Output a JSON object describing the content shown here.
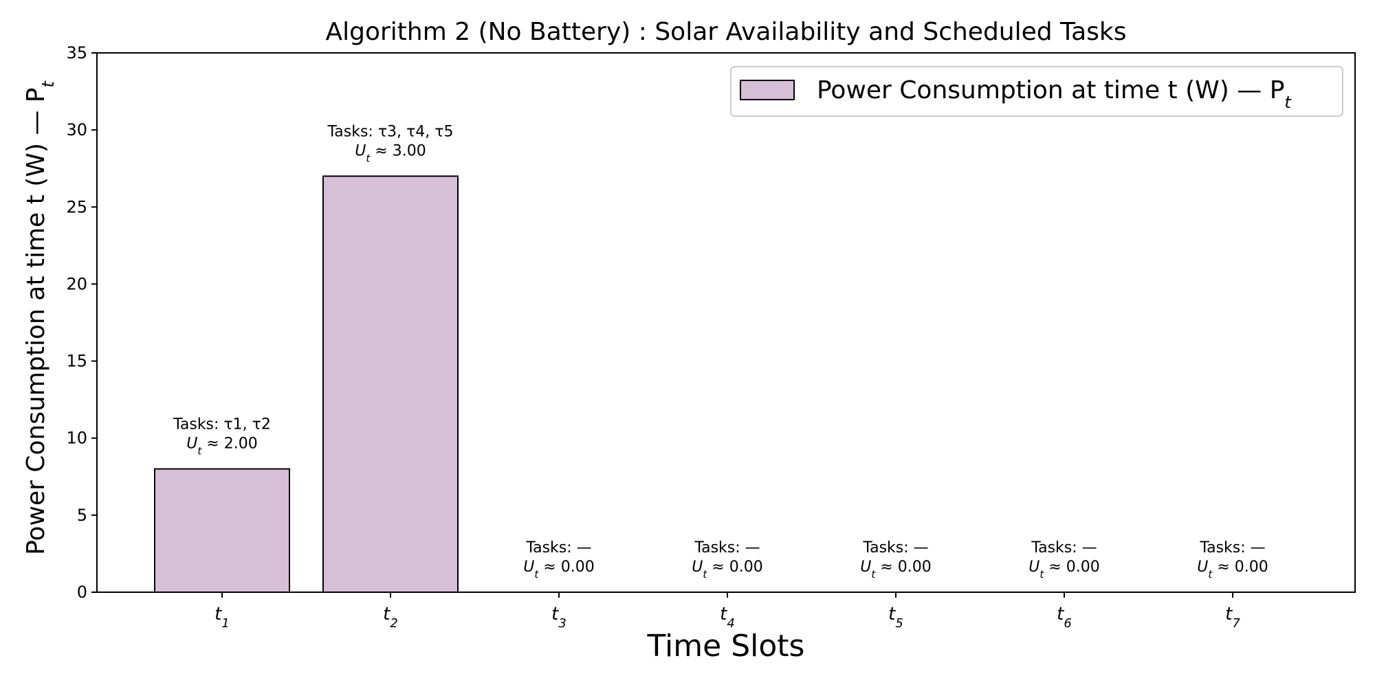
{
  "chart_data": {
    "type": "bar",
    "title": "Algorithm 2 (No Battery) : Solar Availability and Scheduled Tasks",
    "xlabel": "Time Slots",
    "ylabel": "Power Consumption at time t (W) — P",
    "ylabel_sub": "t",
    "categories": [
      {
        "base": "t",
        "sub": "1"
      },
      {
        "base": "t",
        "sub": "2"
      },
      {
        "base": "t",
        "sub": "3"
      },
      {
        "base": "t",
        "sub": "4"
      },
      {
        "base": "t",
        "sub": "5"
      },
      {
        "base": "t",
        "sub": "6"
      },
      {
        "base": "t",
        "sub": "7"
      }
    ],
    "series": [
      {
        "name": "Power Consumption at time t (W) — P",
        "name_sub": "t",
        "values": [
          8,
          27,
          0,
          0,
          0,
          0,
          0
        ],
        "color": "#d8bfd8"
      }
    ],
    "annotations": [
      {
        "tasks": "Tasks: τ1, τ2",
        "u_base": "U",
        "u_sub": "t",
        "u_value": " ≈ 2.00"
      },
      {
        "tasks": "Tasks: τ3, τ4, τ5",
        "u_base": "U",
        "u_sub": "t",
        "u_value": " ≈ 3.00"
      },
      {
        "tasks": "Tasks: —",
        "u_base": "U",
        "u_sub": "t",
        "u_value": " ≈ 0.00"
      },
      {
        "tasks": "Tasks: —",
        "u_base": "U",
        "u_sub": "t",
        "u_value": " ≈ 0.00"
      },
      {
        "tasks": "Tasks: —",
        "u_base": "U",
        "u_sub": "t",
        "u_value": " ≈ 0.00"
      },
      {
        "tasks": "Tasks: —",
        "u_base": "U",
        "u_sub": "t",
        "u_value": " ≈ 0.00"
      },
      {
        "tasks": "Tasks: —",
        "u_base": "U",
        "u_sub": "t",
        "u_value": " ≈ 0.00"
      }
    ],
    "ylim": [
      0,
      35
    ],
    "yticks": [
      0,
      5,
      10,
      15,
      20,
      25,
      30,
      35
    ],
    "grid": false,
    "legend_position": "top-right",
    "edge_color": "#000000"
  }
}
